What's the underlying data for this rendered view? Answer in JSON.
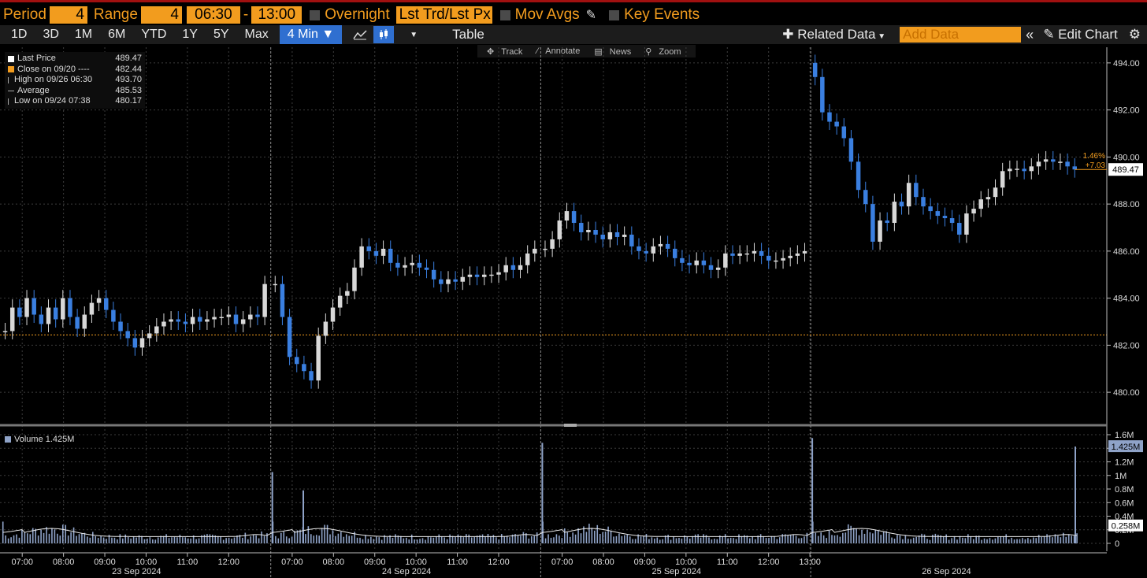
{
  "toolbar": {
    "period_label": "Period",
    "period_value": "4",
    "range_label": "Range",
    "range_value": "4",
    "time_start": "06:30",
    "time_sep": "-",
    "time_end": "13:00",
    "overnight_label": "Overnight",
    "price_type": "Lst Trd/Lst Px",
    "mov_avgs_label": "Mov Avgs",
    "key_events_label": "Key Events"
  },
  "range_buttons": [
    "1D",
    "3D",
    "1M",
    "6M",
    "YTD",
    "1Y",
    "5Y",
    "Max"
  ],
  "interval_button": "4 Min ▼",
  "table_label": "Table",
  "related_data_label": "Related Data",
  "add_data_placeholder": "Add Data",
  "edit_chart_label": "Edit Chart",
  "chart_tools": [
    "Track",
    "Annotate",
    "News",
    "Zoom"
  ],
  "legend": [
    {
      "label": "Last Price",
      "value": "489.47",
      "color": "#ffffff"
    },
    {
      "label": "Close on 09/20 ----",
      "value": "482.44",
      "color": "#f29c1e"
    },
    {
      "label": "High on 09/26 06:30",
      "value": "493.70",
      "color": "#aaaaaa"
    },
    {
      "label": "Average",
      "value": "485.53",
      "color": "#aaaaaa"
    },
    {
      "label": "Low on 09/24 07:38",
      "value": "480.17",
      "color": "#aaaaaa"
    }
  ],
  "volume_legend": "Volume 1.425M",
  "colors": {
    "up": "#d8d8d8",
    "down": "#3a7fe0",
    "close_line": "#f29c1e",
    "volume": "#8fa3c8",
    "accent": "#f29c1e"
  },
  "chart_data": [
    {
      "type": "line",
      "subtype": "candlestick",
      "y_ticks": [
        "480.00",
        "482.00",
        "484.00",
        "486.00",
        "488.00",
        "490.00",
        "492.00",
        "494.00"
      ],
      "ylim": [
        479,
        495
      ],
      "reference_line": {
        "label": "Close on 09/20",
        "value": 482.44
      },
      "last_price_label": "489.47",
      "change_pct_label": "1.46%",
      "change_abs_label": "+7.03",
      "grid": true,
      "days": [
        "23 Sep 2024",
        "24 Sep 2024",
        "25 Sep 2024",
        "26 Sep 2024"
      ],
      "x_ticks": [
        "07:00",
        "08:00",
        "09:00",
        "10:00",
        "11:00",
        "12:00",
        "07:00",
        "08:00",
        "09:00",
        "10:00",
        "11:00",
        "12:00",
        "07:00",
        "08:00",
        "09:00",
        "10:00",
        "11:00",
        "12:00",
        "07:00",
        "08:00",
        "09:00",
        "10:00",
        "11:00",
        "12:00",
        "13:00"
      ],
      "series": [
        {
          "day": "23 Sep 2024",
          "time_start": "06:30",
          "time_end": "13:00",
          "closes": [
            482.6,
            483.6,
            483.2,
            484.0,
            483.3,
            482.9,
            483.6,
            483.1,
            484.0,
            483.2,
            482.7,
            483.3,
            483.8,
            484.0,
            483.5,
            483.0,
            482.6,
            482.3,
            481.9,
            482.3,
            482.5,
            482.8,
            483.0,
            483.1,
            483.0,
            482.9,
            483.2,
            483.0,
            483.1,
            483.2,
            483.2,
            483.3,
            482.9,
            483.1,
            483.3,
            483.2,
            484.6
          ]
        },
        {
          "day": "24 Sep 2024",
          "time_start": "06:30",
          "time_end": "13:00",
          "closes": [
            484.6,
            483.2,
            481.5,
            481.2,
            480.9,
            480.5,
            482.4,
            483.0,
            483.6,
            484.1,
            484.3,
            485.3,
            486.2,
            486.0,
            485.8,
            486.1,
            485.5,
            485.3,
            485.4,
            485.5,
            485.3,
            485.2,
            484.8,
            484.6,
            484.8,
            484.7,
            484.9,
            485.0,
            484.9,
            485.0,
            485.0,
            485.1,
            485.4,
            485.2,
            485.4,
            485.9,
            486.1
          ]
        },
        {
          "day": "25 Sep 2024",
          "time_start": "06:30",
          "time_end": "13:00",
          "closes": [
            486.1,
            486.5,
            487.3,
            487.7,
            487.2,
            486.8,
            486.9,
            486.7,
            486.5,
            486.8,
            486.6,
            486.7,
            486.2,
            486.0,
            485.9,
            486.2,
            486.3,
            486.1,
            485.7,
            485.5,
            485.4,
            485.6,
            485.4,
            485.2,
            485.3,
            485.9,
            485.8,
            485.9,
            485.9,
            486.0,
            485.8,
            485.6,
            485.6,
            485.7,
            485.8,
            485.9,
            486.0
          ]
        },
        {
          "day": "26 Sep 2024",
          "time_start": "06:30",
          "time_end": "13:00",
          "closes": [
            493.4,
            491.9,
            491.5,
            491.3,
            490.8,
            489.8,
            488.6,
            488.0,
            486.4,
            487.3,
            487.2,
            488.1,
            487.9,
            488.9,
            488.3,
            487.9,
            487.7,
            487.5,
            487.4,
            487.2,
            486.7,
            487.6,
            487.8,
            488.2,
            488.3,
            488.7,
            489.4,
            489.5,
            489.5,
            489.4,
            489.6,
            489.8,
            489.9,
            489.8,
            489.8,
            489.6,
            489.47
          ]
        }
      ]
    },
    {
      "type": "bar",
      "name": "Volume",
      "y_ticks": [
        "0",
        "0.2M",
        "0.4M",
        "0.6M",
        "0.8M",
        "1M",
        "1.2M",
        "1.4M",
        "1.6M"
      ],
      "ylim": [
        0,
        1.6
      ],
      "unit": "M",
      "last_volume_label": "1.425M",
      "moving_average_label": "0.258M",
      "spikes": [
        {
          "day": "24 Sep 2024",
          "time": "06:30",
          "value": 1.05
        },
        {
          "day": "24 Sep 2024",
          "time": "07:15",
          "value": 0.78
        },
        {
          "day": "25 Sep 2024",
          "time": "06:30",
          "value": 1.48
        },
        {
          "day": "26 Sep 2024",
          "time": "06:30",
          "value": 1.55
        },
        {
          "day": "26 Sep 2024",
          "time": "13:00",
          "value": 1.425
        }
      ]
    }
  ]
}
